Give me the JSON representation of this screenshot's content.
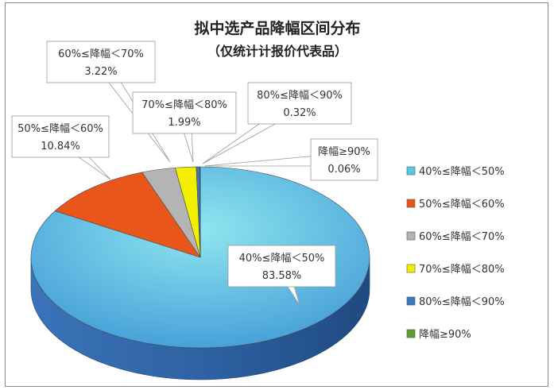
{
  "chart_data": {
    "type": "pie",
    "title": "拟中选产品降幅区间分布",
    "subtitle": "（仅统计计报价代表品）",
    "categories": [
      "40%≤降幅＜50%",
      "50%≤降幅＜60%",
      "60%≤降幅＜70%",
      "70%≤降幅＜80%",
      "80%≤降幅＜90%",
      "降幅≥90%"
    ],
    "values": [
      83.58,
      10.84,
      3.22,
      1.99,
      0.32,
      0.06
    ],
    "value_labels": [
      "83.58%",
      "10.84%",
      "3.22%",
      "1.99%",
      "0.32%",
      "0.06%"
    ],
    "colors": [
      "#5ac8e0",
      "#e8561c",
      "#b4b4b4",
      "#f2ef00",
      "#3d78c0",
      "#5aa02c"
    ],
    "legend_position": "right",
    "style": "3d"
  }
}
